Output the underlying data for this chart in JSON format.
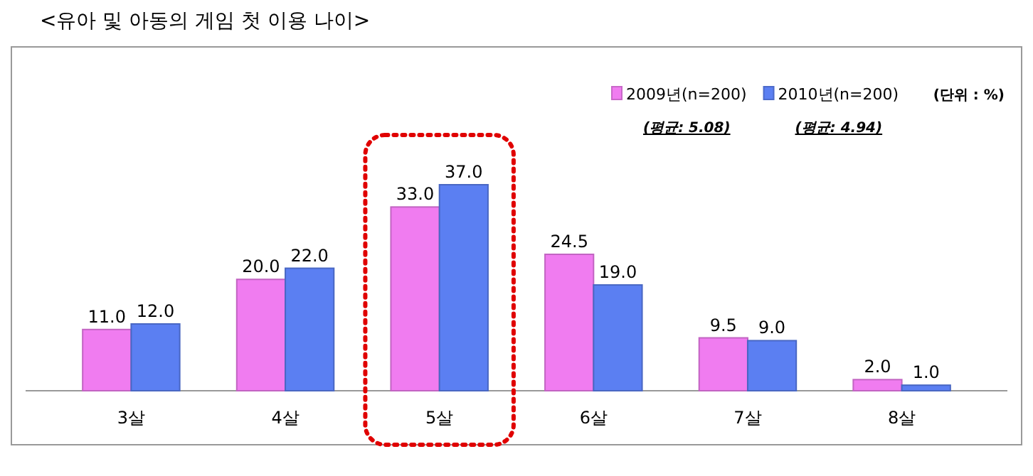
{
  "chart_data": {
    "type": "bar",
    "title": "<유아 및 아동의 게임 첫 이용 나이>",
    "categories": [
      "3살",
      "4살",
      "5살",
      "6살",
      "7살",
      "8살"
    ],
    "series": [
      {
        "name": "2009년(n=200)",
        "color": "#f07cf0",
        "values": [
          11.0,
          20.0,
          33.0,
          24.5,
          9.5,
          2.0
        ],
        "value_labels": [
          "11.0",
          "20.0",
          "33.0",
          "24.5",
          "9.5",
          "2.0"
        ]
      },
      {
        "name": "2010년(n=200)",
        "color": "#5b7ff2",
        "values": [
          12.0,
          22.0,
          37.0,
          19.0,
          9.0,
          1.0
        ],
        "value_labels": [
          "12.0",
          "22.0",
          "37.0",
          "19.0",
          "9.0",
          "1.0"
        ]
      }
    ],
    "annotations": [
      "(단위 : %)",
      "(평균: 5.08)",
      "(평균: 4.94)"
    ],
    "legend": "top right"
  }
}
